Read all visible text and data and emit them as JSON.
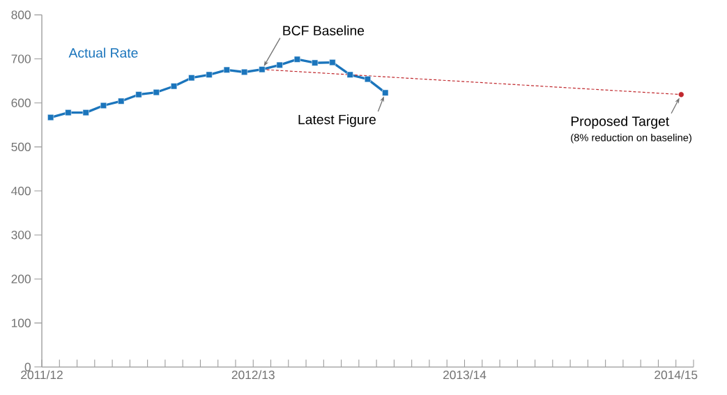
{
  "chart_data": {
    "type": "line",
    "xlim": [
      "2011-04",
      "2014-05"
    ],
    "ylim": [
      0,
      800
    ],
    "yticks": [
      0,
      100,
      200,
      300,
      400,
      500,
      600,
      700,
      800
    ],
    "xticks": [
      {
        "value": "2011-04",
        "label": "2011/12"
      },
      {
        "value": "2011-05",
        "label": null
      },
      {
        "value": "2011-06",
        "label": null
      },
      {
        "value": "2011-07",
        "label": null
      },
      {
        "value": "2011-08",
        "label": null
      },
      {
        "value": "2011-09",
        "label": null
      },
      {
        "value": "2011-10",
        "label": null
      },
      {
        "value": "2011-11",
        "label": null
      },
      {
        "value": "2011-12",
        "label": null
      },
      {
        "value": "2012-01",
        "label": null
      },
      {
        "value": "2012-02",
        "label": null
      },
      {
        "value": "2012-03",
        "label": null
      },
      {
        "value": "2012-04",
        "label": "2012/13"
      },
      {
        "value": "2012-05",
        "label": null
      },
      {
        "value": "2012-06",
        "label": null
      },
      {
        "value": "2012-07",
        "label": null
      },
      {
        "value": "2012-08",
        "label": null
      },
      {
        "value": "2012-09",
        "label": null
      },
      {
        "value": "2012-10",
        "label": null
      },
      {
        "value": "2012-11",
        "label": null
      },
      {
        "value": "2012-12",
        "label": null
      },
      {
        "value": "2013-01",
        "label": null
      },
      {
        "value": "2013-02",
        "label": null
      },
      {
        "value": "2013-03",
        "label": null
      },
      {
        "value": "2013-04",
        "label": "2013/14"
      },
      {
        "value": "2013-05",
        "label": null
      },
      {
        "value": "2013-06",
        "label": null
      },
      {
        "value": "2013-07",
        "label": null
      },
      {
        "value": "2013-08",
        "label": null
      },
      {
        "value": "2013-09",
        "label": null
      },
      {
        "value": "2013-10",
        "label": null
      },
      {
        "value": "2013-11",
        "label": null
      },
      {
        "value": "2013-12",
        "label": null
      },
      {
        "value": "2014-01",
        "label": null
      },
      {
        "value": "2014-02",
        "label": null
      },
      {
        "value": "2014-03",
        "label": null
      },
      {
        "value": "2014-04",
        "label": "2014/15"
      },
      {
        "value": "2014-05",
        "label": null
      }
    ],
    "series": [
      {
        "name": "Actual Rate",
        "color": "#1b75bc",
        "marker": "square",
        "line_style": "solid",
        "x": [
          "2011-04-16",
          "2011-05-16",
          "2011-06-16",
          "2011-07-16",
          "2011-08-16",
          "2011-09-16",
          "2011-10-16",
          "2011-11-16",
          "2011-12-16",
          "2012-01-16",
          "2012-02-16",
          "2012-03-16",
          "2012-04-16",
          "2012-05-16",
          "2012-06-16",
          "2012-07-16",
          "2012-08-16",
          "2012-09-16",
          "2012-10-16",
          "2012-11-16"
        ],
        "values": [
          567,
          578,
          578,
          594,
          604,
          619,
          624,
          638,
          657,
          664,
          675,
          670,
          676,
          686,
          699,
          691,
          692,
          664,
          654,
          623
        ]
      },
      {
        "color": "#c0282d",
        "marker": "none",
        "line_style": "dotted",
        "x": [
          "2012-04-16",
          "2014-04-10"
        ],
        "values": [
          676,
          619
        ]
      },
      {
        "type": "scatter",
        "color": "#c0282d",
        "marker": "circle",
        "x": [
          "2014-04-10"
        ],
        "values": [
          619
        ]
      }
    ],
    "annotations": [
      {
        "text": "BCF Baseline",
        "x": "2012-04-16",
        "y": 676
      },
      {
        "text": "Latest Figure",
        "x": "2012-11-16",
        "y": 623
      },
      {
        "text": "Proposed Target",
        "x": "2014-04-10",
        "y": 619
      },
      "(8% reduction on baseline)"
    ],
    "grid": false,
    "legend": false
  }
}
